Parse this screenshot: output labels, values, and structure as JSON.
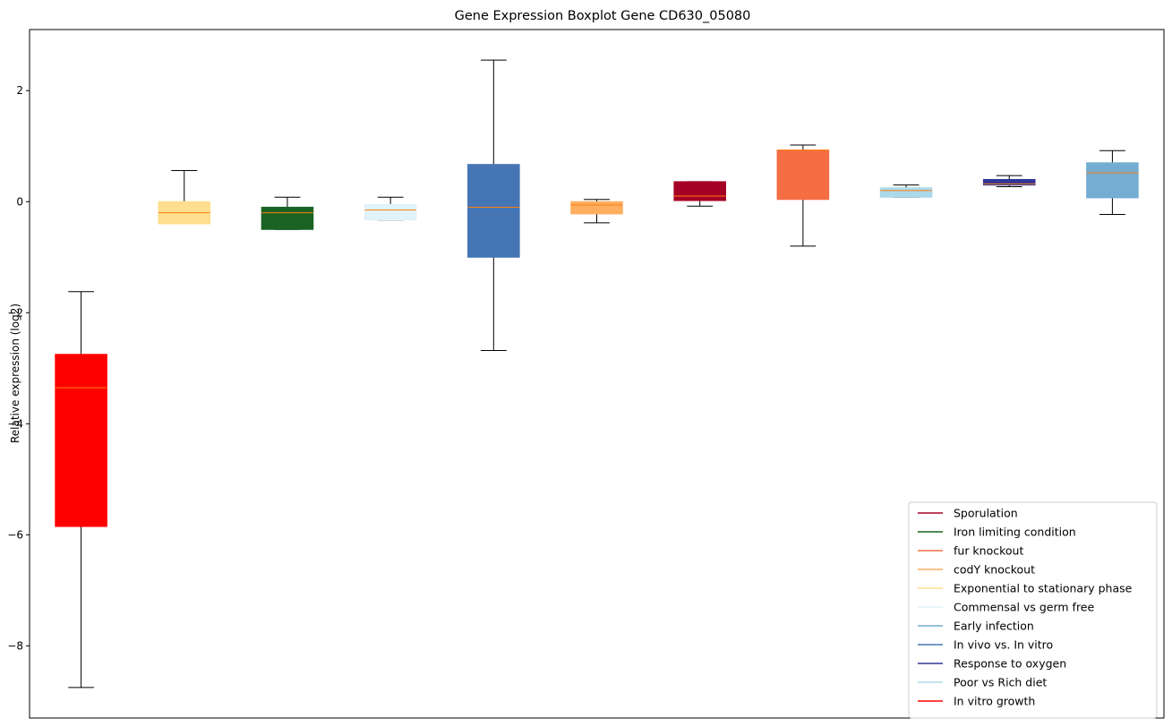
{
  "chart_data": {
    "type": "boxplot",
    "title": "Gene Expression Boxplot Gene CD630_05080",
    "xlabel": "",
    "ylabel": "Relative expression (log2)",
    "ylim": [
      -9.3,
      3.1
    ],
    "yticks": [
      2,
      0,
      -2,
      -4,
      -6,
      -8
    ],
    "ytick_labels": [
      "2",
      "0",
      "−2",
      "−4",
      "−6",
      "−8"
    ],
    "legend_position": "lower-right",
    "grid": false,
    "boxes": [
      {
        "series": "In vitro growth",
        "color": "#ff0000",
        "whisker_low": -8.75,
        "q1": -5.85,
        "median": -3.35,
        "q3": -2.75,
        "whisker_high": -1.62
      },
      {
        "series": "Exponential to stationary phase",
        "color": "#fedf8f",
        "whisker_low": -0.4,
        "q1": -0.4,
        "median": -0.2,
        "q3": 0.0,
        "whisker_high": 0.56
      },
      {
        "series": "Iron limiting condition",
        "color": "#1a6325",
        "whisker_low": -0.5,
        "q1": -0.5,
        "median": -0.2,
        "q3": -0.1,
        "whisker_high": 0.08
      },
      {
        "series": "Commensal vs germ free",
        "color": "#e0f3f8",
        "whisker_low": -0.33,
        "q1": -0.33,
        "median": -0.15,
        "q3": -0.05,
        "whisker_high": 0.08
      },
      {
        "series": "In vivo vs. In vitro",
        "color": "#4575b4",
        "whisker_low": -2.68,
        "q1": -1.0,
        "median": -0.1,
        "q3": 0.67,
        "whisker_high": 2.55
      },
      {
        "series": "codY knockout",
        "color": "#fdae61",
        "whisker_low": -0.38,
        "q1": -0.22,
        "median": -0.06,
        "q3": 0.0,
        "whisker_high": 0.04
      },
      {
        "series": "Sporulation",
        "color": "#a50026",
        "whisker_low": -0.08,
        "q1": 0.02,
        "median": 0.1,
        "q3": 0.36,
        "whisker_high": 0.36
      },
      {
        "series": "fur knockout",
        "color": "#f46d43",
        "whisker_low": -0.8,
        "q1": 0.04,
        "median": 0.93,
        "q3": 0.93,
        "whisker_high": 1.02
      },
      {
        "series": "Poor vs Rich diet",
        "color": "#abd9e9",
        "whisker_low": 0.08,
        "q1": 0.08,
        "median": 0.2,
        "q3": 0.25,
        "whisker_high": 0.3
      },
      {
        "series": "Response to oxygen",
        "color": "#313695",
        "whisker_low": 0.27,
        "q1": 0.3,
        "median": 0.32,
        "q3": 0.4,
        "whisker_high": 0.47
      },
      {
        "series": "Early infection",
        "color": "#74add1",
        "whisker_low": -0.23,
        "q1": 0.07,
        "median": 0.52,
        "q3": 0.7,
        "whisker_high": 0.92
      }
    ],
    "median_color": "#ff7f0e",
    "legend": [
      {
        "label": "Sporulation",
        "color": "#a50026"
      },
      {
        "label": "Iron limiting condition",
        "color": "#1a6325"
      },
      {
        "label": "fur knockout",
        "color": "#f46d43"
      },
      {
        "label": "codY knockout",
        "color": "#fdae61"
      },
      {
        "label": "Exponential to stationary phase",
        "color": "#fedf8f"
      },
      {
        "label": "Commensal vs germ free",
        "color": "#e0f3f8"
      },
      {
        "label": "Early infection",
        "color": "#74add1"
      },
      {
        "label": "In vivo vs. In vitro",
        "color": "#4575b4"
      },
      {
        "label": "Response to oxygen",
        "color": "#313695"
      },
      {
        "label": "Poor vs Rich diet",
        "color": "#abd9e9"
      },
      {
        "label": "In vitro growth",
        "color": "#ff0000"
      }
    ]
  }
}
